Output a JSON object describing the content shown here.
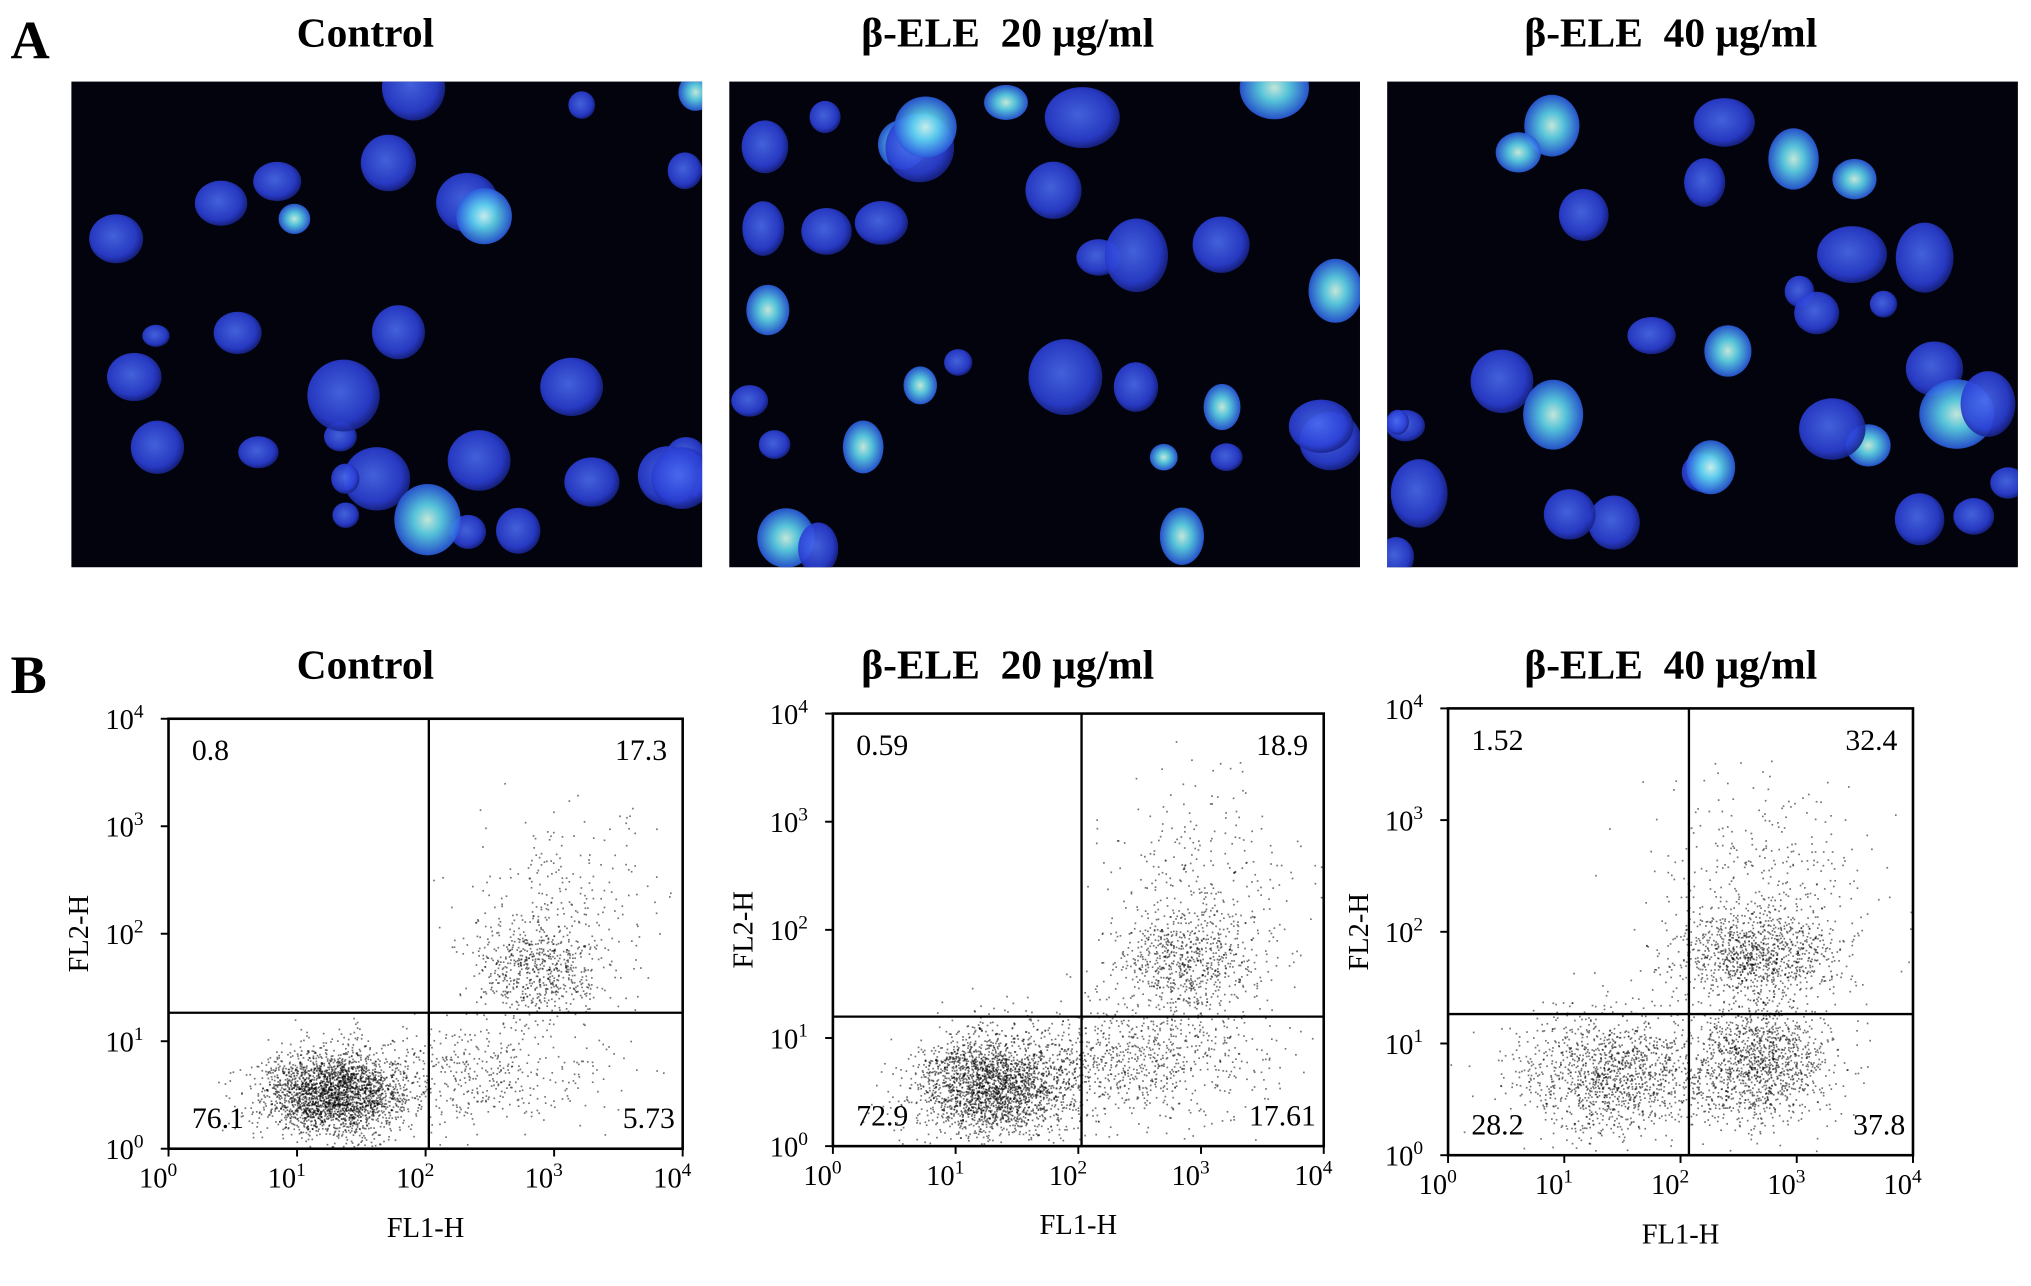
{
  "panel_a": {
    "label": "A",
    "images": [
      {
        "title": "Control"
      },
      {
        "title": "β-ELE  20 μg/ml"
      },
      {
        "title": "β-ELE  40 μg/ml"
      }
    ]
  },
  "panel_b": {
    "label": "B",
    "ticks": [
      {
        "base": "10",
        "exp": "0"
      },
      {
        "base": "10",
        "exp": "1"
      },
      {
        "base": "10",
        "exp": "2"
      },
      {
        "base": "10",
        "exp": "3"
      },
      {
        "base": "10",
        "exp": "4"
      }
    ],
    "plots": [
      {
        "title": "Control",
        "x_label": "FL1-H",
        "y_label": "FL2-H",
        "upper_left": 0.8,
        "upper_right": 17.3,
        "lower_left": 76.1,
        "lower_right": 5.73
      },
      {
        "title": "β-ELE  20 μg/ml",
        "x_label": "FL1-H",
        "y_label": "FL2-H",
        "upper_left": 0.59,
        "upper_right": 18.9,
        "lower_left": 72.9,
        "lower_right": 17.61
      },
      {
        "title": "β-ELE  40 μg/ml",
        "x_label": "FL1-H",
        "y_label": "FL2-H",
        "upper_left": 1.52,
        "upper_right": 32.4,
        "lower_left": 28.2,
        "lower_right": 37.8
      }
    ]
  }
}
